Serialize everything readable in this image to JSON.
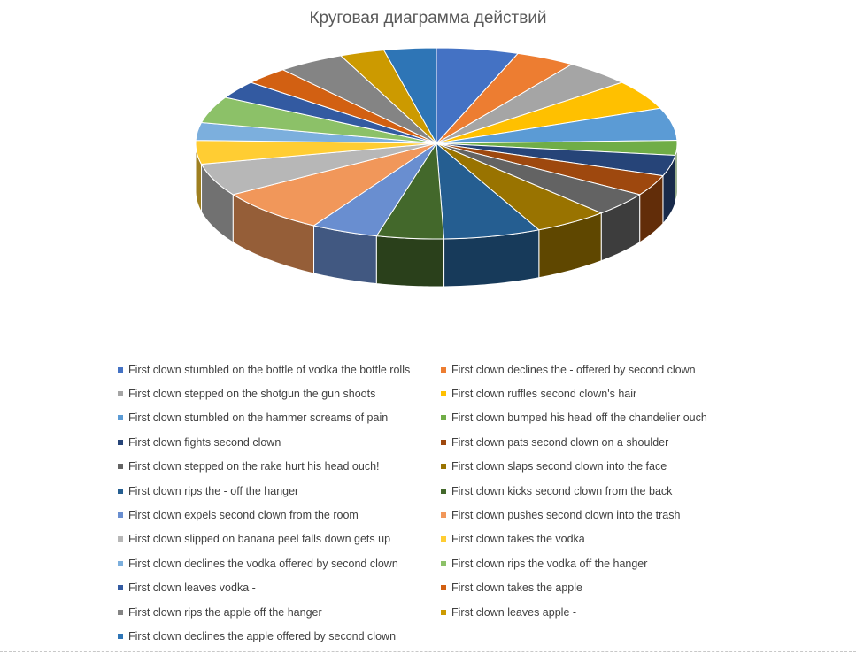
{
  "chart_data": {
    "type": "pie",
    "title": "Круговая диаграмма действий",
    "legend_position": "bottom",
    "categories": [
      "First clown stumbled on the bottle of vodka the bottle rolls",
      "First clown declines the - offered by second clown",
      "First clown stepped on the shotgun the gun shoots",
      "First clown ruffles second clown's hair",
      "First clown stumbled on the hammer screams of pain",
      "First clown bumped his head off the chandelier ouch",
      "First clown fights second clown",
      "First clown pats second clown on a shoulder",
      "First clown stepped on the rake hurt his head ouch!",
      "First clown slaps second clown into the face",
      "First clown rips the - off the hanger",
      "First clown kicks second clown from the back",
      "First clown expels second clown from the room",
      "First clown pushes second clown into the trash",
      "First clown slipped on banana peel falls down gets up",
      "First clown takes the vodka",
      "First clown declines the vodka offered by second clown",
      "First clown rips the vodka off the hanger",
      "First clown leaves vodka -",
      "First clown takes the apple",
      "First clown rips the apple off the hanger",
      "First clown leaves apple -",
      "First clown declines the apple offered by second clown"
    ],
    "values": [
      5.5,
      4,
      4.5,
      5,
      5.5,
      2.5,
      3.5,
      3.5,
      4,
      5,
      6.5,
      4.5,
      4.5,
      7.5,
      5.5,
      4,
      3,
      4.5,
      3,
      3,
      4.5,
      3,
      3.5
    ],
    "colors": [
      "#4472C4",
      "#ED7D31",
      "#A5A5A5",
      "#FFC000",
      "#5B9BD5",
      "#70AD47",
      "#264478",
      "#9E480E",
      "#636363",
      "#997300",
      "#255E91",
      "#43682B",
      "#698ED0",
      "#F1975A",
      "#B7B7B7",
      "#FFCD33",
      "#7CAFDD",
      "#8CC168",
      "#335AA1",
      "#D26012",
      "#848484",
      "#CC9A00",
      "#2E75B6"
    ]
  }
}
